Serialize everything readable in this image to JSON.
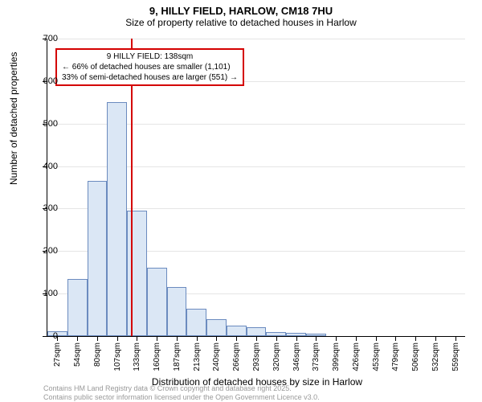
{
  "title": "9, HILLY FIELD, HARLOW, CM18 7HU",
  "subtitle": "Size of property relative to detached houses in Harlow",
  "chart": {
    "type": "histogram",
    "ylabel": "Number of detached properties",
    "xlabel": "Distribution of detached houses by size in Harlow",
    "ylim": [
      0,
      700
    ],
    "ytick_step": 100,
    "yticks": [
      0,
      100,
      200,
      300,
      400,
      500,
      600,
      700
    ],
    "xticks": [
      "27sqm",
      "54sqm",
      "80sqm",
      "107sqm",
      "133sqm",
      "160sqm",
      "187sqm",
      "213sqm",
      "240sqm",
      "266sqm",
      "293sqm",
      "320sqm",
      "346sqm",
      "373sqm",
      "399sqm",
      "426sqm",
      "453sqm",
      "479sqm",
      "506sqm",
      "532sqm",
      "559sqm"
    ],
    "values": [
      12,
      135,
      365,
      550,
      295,
      160,
      115,
      65,
      40,
      25,
      20,
      10,
      8,
      5,
      0,
      0,
      0,
      0,
      0,
      0,
      0
    ],
    "bar_fill": "#dbe7f5",
    "bar_border": "#6b8bbf",
    "grid_color": "#e5e5e5",
    "background_color": "#ffffff",
    "marker": {
      "position_index": 4.2,
      "color": "#d40000"
    },
    "annotation": {
      "line1": "9 HILLY FIELD: 138sqm",
      "line2": "← 66% of detached houses are smaller (1,101)",
      "line3": "33% of semi-detached houses are larger (551) →",
      "border_color": "#d40000"
    },
    "title_fontsize": 13,
    "label_fontsize": 12,
    "tick_fontsize": 10
  },
  "footer": {
    "line1": "Contains HM Land Registry data © Crown copyright and database right 2025.",
    "line2": "Contains public sector information licensed under the Open Government Licence v3.0."
  }
}
